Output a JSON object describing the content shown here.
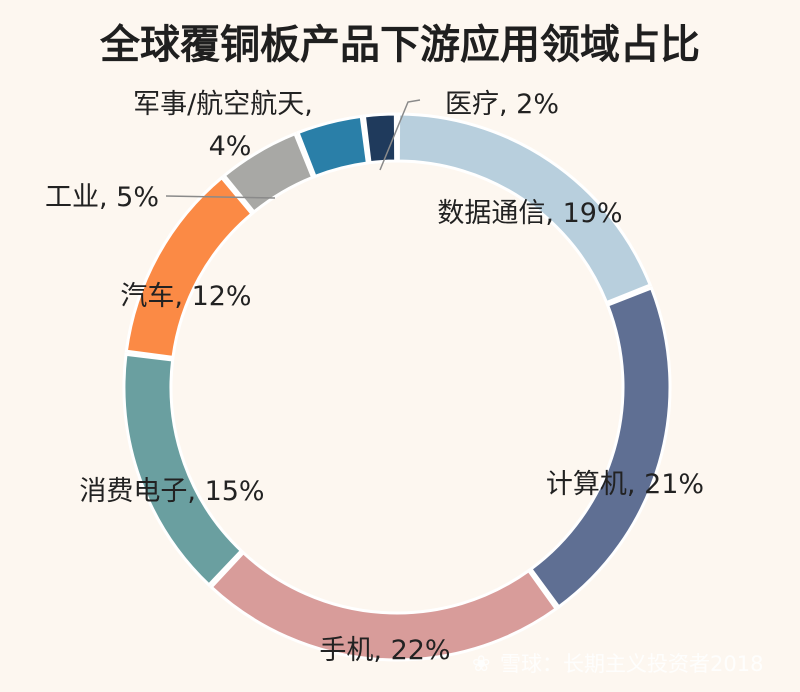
{
  "chart_data": {
    "type": "pie",
    "title": "全球覆铜板产品下游应用领域占比",
    "slices": [
      {
        "label": "数据通信, 19%",
        "value": 19,
        "color": "#b8cfdd"
      },
      {
        "label": "计算机, 21%",
        "value": 21,
        "color": "#5f6f93"
      },
      {
        "label": "手机, 22%",
        "value": 22,
        "color": "#d89c9a"
      },
      {
        "label": "消费电子, 15%",
        "value": 15,
        "color": "#6a9fa0"
      },
      {
        "label": "汽车, 12%",
        "value": 12,
        "color": "#fb8a45"
      },
      {
        "label": "工业, 5%",
        "value": 5,
        "color": "#a8a8a5"
      },
      {
        "label": "军事/航空航天, 4%",
        "value": 4,
        "color": "#2a7fa8"
      },
      {
        "label": "医疗, 2%",
        "value": 2,
        "color": "#1f3a5c"
      }
    ]
  },
  "watermark": {
    "text": "雪球：长期主义投资者2018"
  }
}
